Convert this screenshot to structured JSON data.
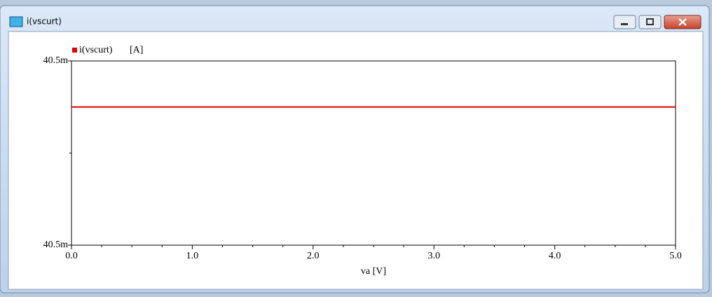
{
  "window": {
    "title": "i(vscurt)"
  },
  "chart_data": {
    "type": "line",
    "x": [
      0,
      5
    ],
    "series": [
      {
        "name": "i(vscurt)",
        "color": "#e00000",
        "values": [
          0.04053,
          0.04053
        ]
      }
    ],
    "y_unit": "[A]",
    "xlabel": "va [V]",
    "xlim": [
      0,
      5
    ],
    "ylim": [
      0.0405,
      0.04054
    ],
    "xticks": [
      {
        "value": 0,
        "label": "0.0"
      },
      {
        "value": 1,
        "label": "1.0"
      },
      {
        "value": 2,
        "label": "2.0"
      },
      {
        "value": 3,
        "label": "3.0"
      },
      {
        "value": 4,
        "label": "4.0"
      },
      {
        "value": 5,
        "label": "5.0"
      }
    ],
    "minor_xticks": [
      0.25,
      0.5,
      0.75,
      1.25,
      1.5,
      1.75,
      2.25,
      2.5,
      2.75,
      3.25,
      3.5,
      3.75,
      4.25,
      4.5,
      4.75
    ],
    "yticks": [
      {
        "value": 0.0405,
        "label": "40.5m"
      },
      {
        "value": 0.04054,
        "label": "40.5m"
      }
    ],
    "minor_yticks": [
      0.04052
    ]
  }
}
